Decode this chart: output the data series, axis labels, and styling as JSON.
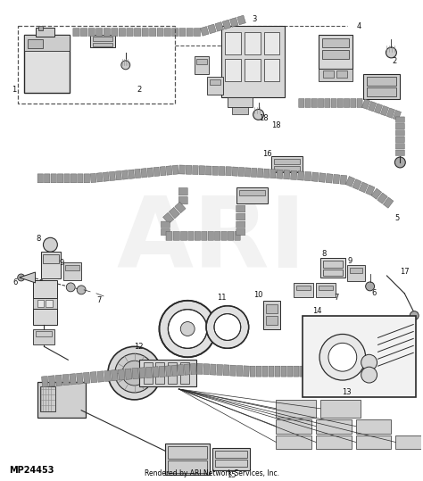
{
  "background_color": "#ffffff",
  "watermark_text": "ARI",
  "watermark_color": "#cccccc",
  "watermark_alpha": 0.25,
  "bottom_left_text": "MP24453",
  "bottom_center_text": "Rendered by ARI Network Services, Inc.",
  "fig_width": 4.74,
  "fig_height": 5.39,
  "dpi": 100,
  "line_color": "#2a2a2a",
  "gray_fill": "#d8d8d8",
  "dark_gray": "#888888",
  "mid_gray": "#aaaaaa",
  "light_gray": "#e8e8e8",
  "harness_fill": "#999999",
  "harness_edge": "#555555"
}
